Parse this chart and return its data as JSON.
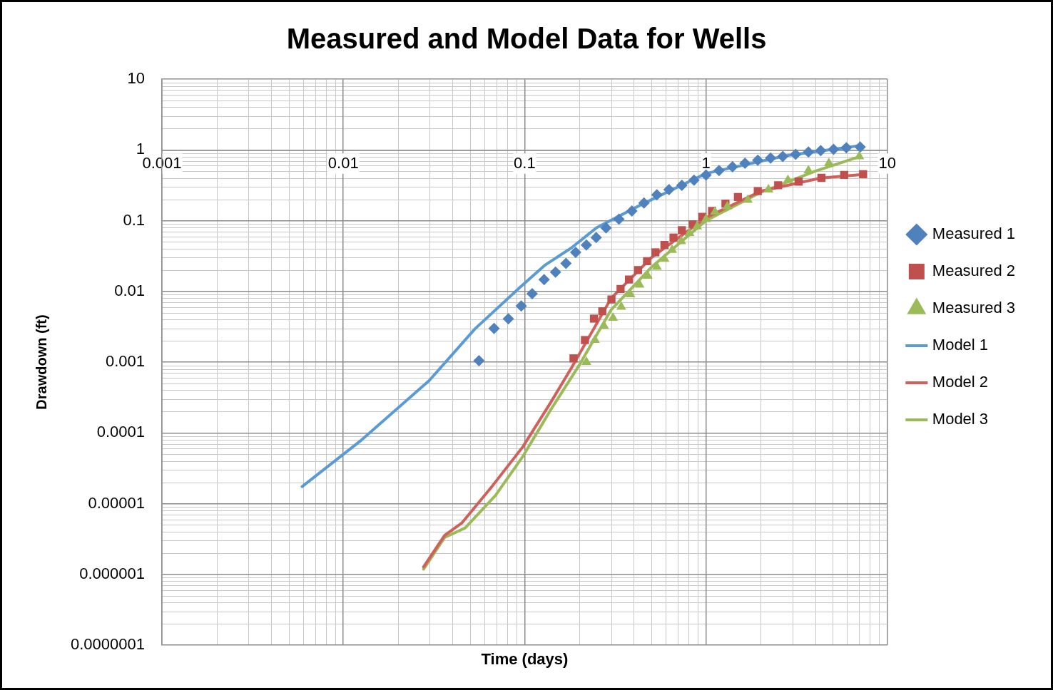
{
  "chart_data": {
    "type": "scatter",
    "title": "Measured and Model Data for Wells",
    "xlabel": "Time (days)",
    "ylabel": "Drawdown (ft)",
    "log": "xy",
    "grid": true,
    "legend": "right",
    "xlim": [
      0.001,
      10
    ],
    "xticks": [
      0.001,
      0.01,
      0.1,
      1,
      10
    ],
    "ylim": [
      1e-07,
      10
    ],
    "yticks": [
      {
        "value": 1e-07,
        "label": "0.0000001"
      },
      {
        "value": 1e-06,
        "label": "0.000001"
      },
      {
        "value": 1e-05,
        "label": "0.00001"
      },
      0.0001,
      0.001,
      0.01,
      0.1,
      1,
      10
    ],
    "series": [
      {
        "name": "Measured 1",
        "type": "scatter",
        "marker": "diamond",
        "color": "#4f81bd",
        "x": [
          0.056,
          0.0678,
          0.0813,
          0.0957,
          0.11,
          0.128,
          0.148,
          0.169,
          0.191,
          0.219,
          0.248,
          0.281,
          0.331,
          0.39,
          0.455,
          0.536,
          0.625,
          0.736,
          0.859,
          1.0,
          1.18,
          1.4,
          1.64,
          1.93,
          2.27,
          2.65,
          3.12,
          3.67,
          4.29,
          5.05,
          5.94,
          7.08
        ],
        "values": [
          0.00105,
          0.003,
          0.0041,
          0.0062,
          0.0093,
          0.0147,
          0.0187,
          0.0249,
          0.0356,
          0.0453,
          0.0576,
          0.0787,
          0.105,
          0.137,
          0.178,
          0.232,
          0.274,
          0.316,
          0.374,
          0.442,
          0.511,
          0.575,
          0.649,
          0.715,
          0.768,
          0.806,
          0.866,
          0.931,
          0.976,
          1.02,
          1.07,
          1.1
        ]
      },
      {
        "name": "Measured 2",
        "type": "scatter",
        "marker": "square",
        "color": "#c0504d",
        "x": [
          0.186,
          0.215,
          0.241,
          0.268,
          0.301,
          0.338,
          0.376,
          0.422,
          0.473,
          0.526,
          0.59,
          0.662,
          0.736,
          0.843,
          0.955,
          1.08,
          1.28,
          1.5,
          1.93,
          2.5,
          3.24,
          4.33,
          5.78,
          7.35
        ],
        "values": [
          0.00113,
          0.00205,
          0.00412,
          0.00523,
          0.00768,
          0.0108,
          0.0147,
          0.02,
          0.0267,
          0.0356,
          0.0453,
          0.0576,
          0.0732,
          0.0887,
          0.113,
          0.137,
          0.174,
          0.216,
          0.261,
          0.316,
          0.356,
          0.402,
          0.442,
          0.453
        ]
      },
      {
        "name": "Measured 3",
        "type": "scatter",
        "marker": "triangle",
        "color": "#9bbb59",
        "x": [
          0.219,
          0.244,
          0.274,
          0.307,
          0.341,
          0.383,
          0.43,
          0.477,
          0.536,
          0.59,
          0.65,
          0.73,
          0.811,
          0.893,
          1.0,
          1.12,
          1.31,
          1.7,
          2.21,
          2.83,
          3.67,
          4.76,
          7.0
        ],
        "values": [
          0.001,
          0.00205,
          0.00324,
          0.00422,
          0.00604,
          0.00908,
          0.0124,
          0.0166,
          0.0221,
          0.0287,
          0.0383,
          0.0511,
          0.0665,
          0.0825,
          0.105,
          0.133,
          0.158,
          0.196,
          0.274,
          0.374,
          0.511,
          0.649,
          0.806
        ]
      },
      {
        "name": "Model 1",
        "type": "line",
        "marker": "none",
        "color": "#5b9bd5",
        "x": [
          0.00593,
          0.01256,
          0.0298,
          0.0532,
          0.0948,
          0.13,
          0.181,
          0.248,
          0.443,
          1.0,
          2.75,
          7.08
        ],
        "values": [
          1.74e-05,
          7.87e-05,
          0.00055,
          0.00295,
          0.01155,
          0.0237,
          0.0412,
          0.0787,
          0.17,
          0.464,
          0.826,
          1.15
        ]
      },
      {
        "name": "Model 2",
        "type": "line",
        "marker": "none",
        "color": "#d0605a",
        "x": [
          0.0277,
          0.0362,
          0.0452,
          0.0664,
          0.0977,
          0.139,
          0.181,
          0.3,
          0.5,
          1.0,
          2.0,
          4.3,
          7.35
        ],
        "values": [
          1.27e-06,
          3.56e-06,
          5.37e-06,
          1.78e-05,
          6.34e-05,
          0.000267,
          0.000825,
          0.008,
          0.03,
          0.11,
          0.26,
          0.4,
          0.45
        ]
      },
      {
        "name": "Model 3",
        "type": "line",
        "marker": "none",
        "color": "#9bbb59",
        "x": [
          0.0277,
          0.0362,
          0.047,
          0.069,
          0.0977,
          0.139,
          0.199,
          0.3,
          0.5,
          1.0,
          2.0,
          4.0,
          7.0
        ],
        "values": [
          1.18e-06,
          3.32e-06,
          4.53e-06,
          1.3e-05,
          4.64e-05,
          0.00021,
          0.000887,
          0.0055,
          0.022,
          0.1,
          0.25,
          0.5,
          0.8
        ]
      }
    ]
  }
}
